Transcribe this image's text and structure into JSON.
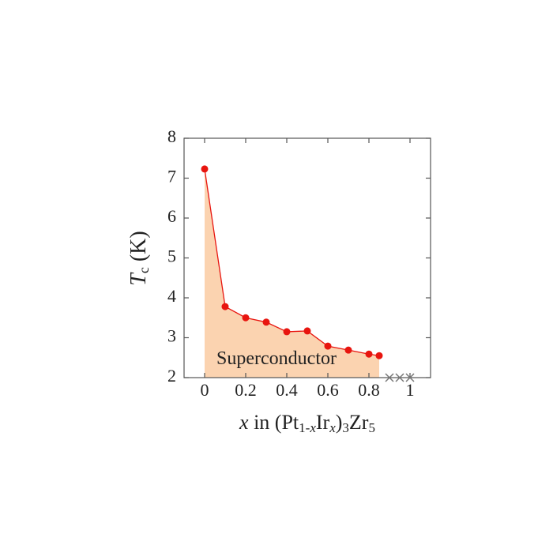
{
  "chart_data": {
    "type": "line",
    "ylabel": [
      "T",
      "c",
      " (K)"
    ],
    "xlabel": [
      "x",
      " in  (Pt",
      "1-",
      "x",
      "Ir",
      "x",
      ")",
      "3",
      "Zr",
      "5"
    ],
    "annotation": "Superconductor",
    "xlim": [
      -0.1,
      1.1
    ],
    "xticks": [
      0,
      0.2,
      0.4,
      0.6,
      0.8,
      1
    ],
    "ylim": [
      2,
      8
    ],
    "yticks": [
      2,
      3,
      4,
      5,
      6,
      7,
      8
    ],
    "fill_color": "#fbd3b0",
    "series": [
      {
        "color": "#e8150f",
        "marker": "dot",
        "x": [
          0,
          0.1,
          0.2,
          0.3,
          0.4,
          0.5,
          0.6,
          0.7,
          0.8,
          0.85
        ],
        "values": [
          7.23,
          3.78,
          3.5,
          3.39,
          3.15,
          3.17,
          2.79,
          2.69,
          2.59,
          2.55
        ]
      },
      {
        "color": "#777777",
        "marker": "x",
        "x": [
          0.9,
          0.95,
          1.0
        ],
        "values": [
          2,
          2,
          2
        ]
      }
    ]
  }
}
